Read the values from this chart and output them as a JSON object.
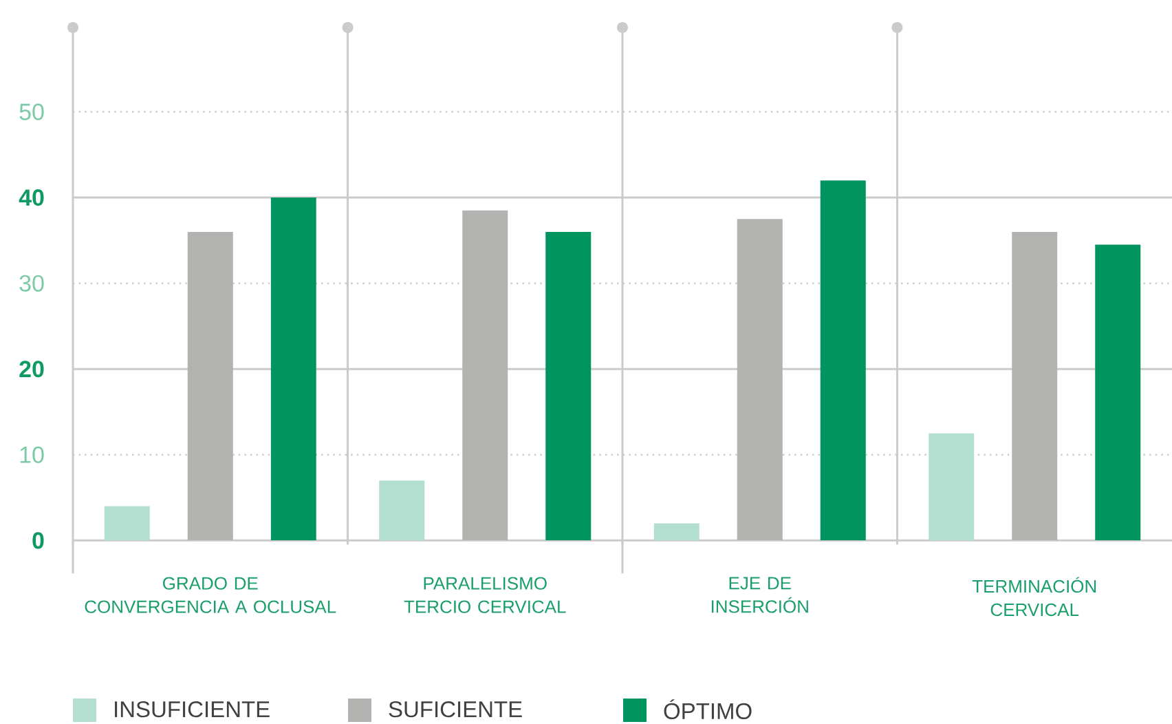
{
  "chart_data": {
    "type": "bar",
    "categories": [
      "GRADO DE\nCONVERGENCIA A OCLUSAL",
      "PARALELISMO\nTERCIO CERVICAL",
      "EJE DE\nINSERCIÓN",
      "TERMINACIÓN\nCERVICAL"
    ],
    "series": [
      {
        "name": "INSUFICIENTE",
        "color": "#b3dfd0",
        "values": [
          4,
          7,
          2,
          12.5
        ]
      },
      {
        "name": "SUFICIENTE",
        "color": "#b2b2b1",
        "values": [
          36,
          38.5,
          37.5,
          36
        ]
      },
      {
        "name": "ÓPTIMO",
        "color": "#00955f",
        "values": [
          40,
          36,
          42,
          34.5
        ]
      }
    ],
    "ylim": [
      0,
      60
    ],
    "yticks": [
      0,
      10,
      20,
      30,
      40,
      50
    ],
    "grid": true,
    "legend": "bottom"
  }
}
